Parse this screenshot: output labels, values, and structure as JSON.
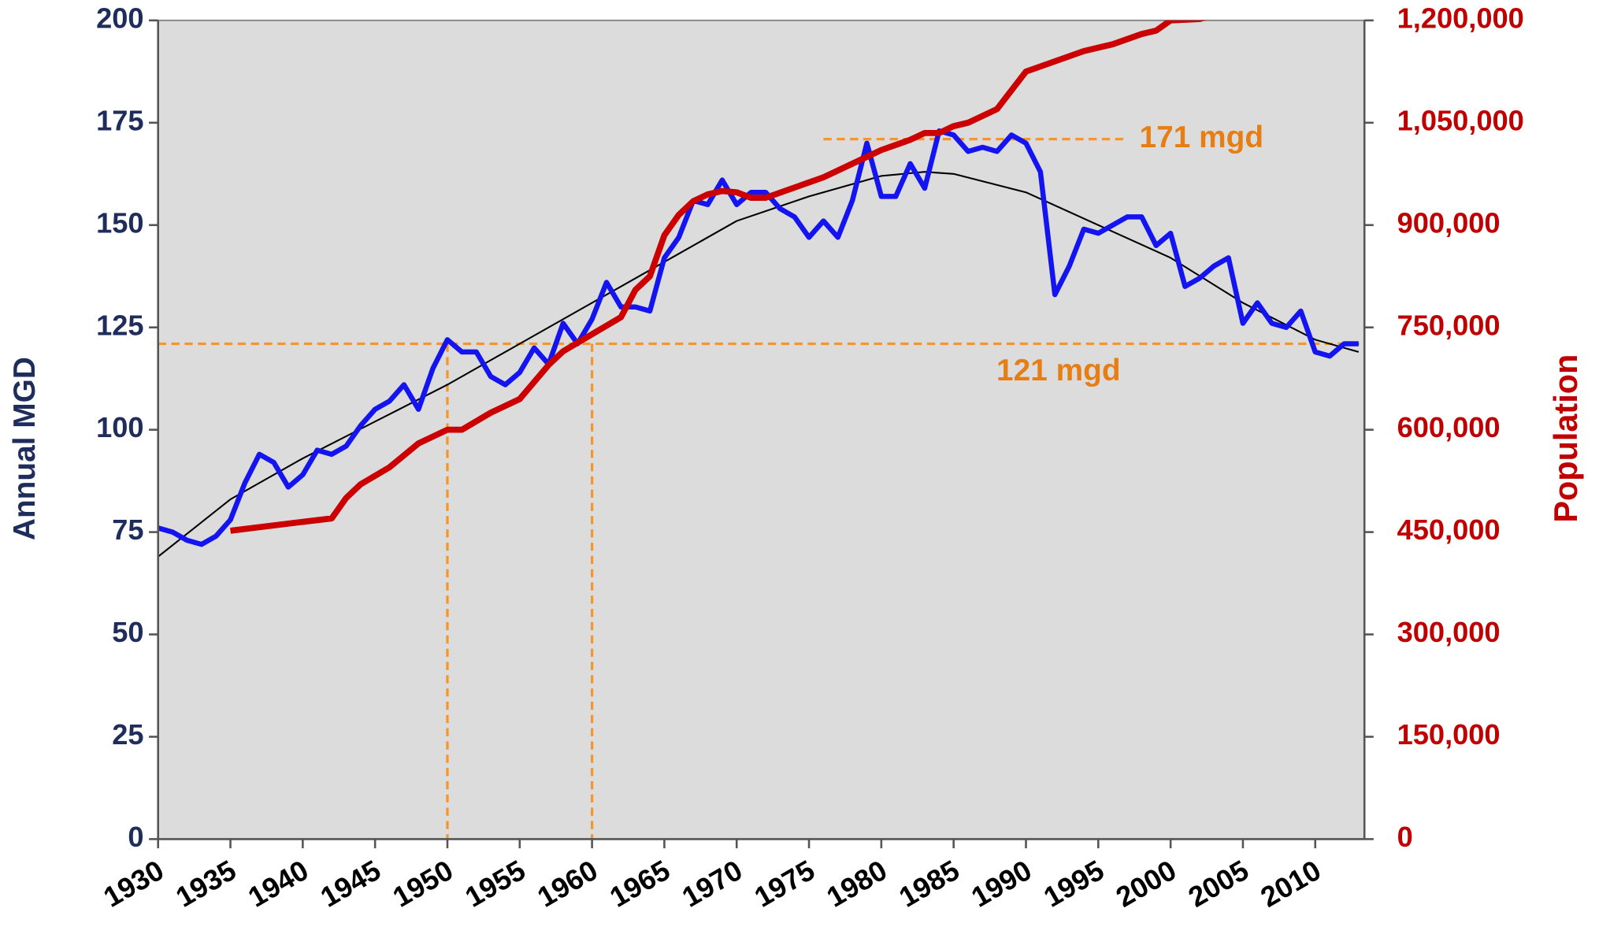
{
  "chart_data": {
    "type": "line",
    "y_label": "Annual MGD",
    "y2_label": "Population",
    "xlim": [
      1930,
      2013.4
    ],
    "xticks": [
      1930,
      1935,
      1940,
      1945,
      1950,
      1955,
      1960,
      1965,
      1970,
      1975,
      1980,
      1985,
      1990,
      1995,
      2000,
      2005,
      2010
    ],
    "ylim": [
      0,
      200
    ],
    "yticks": [
      0,
      25,
      50,
      75,
      100,
      125,
      150,
      175,
      200
    ],
    "y2lim": [
      0,
      1200000
    ],
    "y2ticks": [
      0,
      {
        "value": 150000,
        "label": "150,000"
      },
      {
        "value": 300000,
        "label": "300,000"
      },
      {
        "value": 450000,
        "label": "450,000"
      },
      {
        "value": 600000,
        "label": "600,000"
      },
      {
        "value": 750000,
        "label": "750,000"
      },
      {
        "value": 900000,
        "label": "900,000"
      },
      {
        "value": 1050000,
        "label": "1,050,000"
      },
      {
        "value": 1200000,
        "label": "1,200,000"
      }
    ],
    "series": [
      {
        "color": "#1414f0",
        "axis": "y",
        "width": 5,
        "x": [
          1930,
          1931,
          1932,
          1933,
          1934,
          1935,
          1936,
          1937,
          1938,
          1939,
          1940,
          1941,
          1942,
          1943,
          1944,
          1945,
          1946,
          1947,
          1948,
          1949,
          1950,
          1951,
          1952,
          1953,
          1954,
          1955,
          1956,
          1957,
          1958,
          1959,
          1960,
          1961,
          1962,
          1963,
          1964,
          1965,
          1966,
          1967,
          1968,
          1969,
          1970,
          1971,
          1972,
          1973,
          1974,
          1975,
          1976,
          1977,
          1978,
          1979,
          1980,
          1981,
          1982,
          1983,
          1984,
          1985,
          1986,
          1987,
          1988,
          1989,
          1990,
          1991,
          1992,
          1993,
          1994,
          1995,
          1996,
          1997,
          1998,
          1999,
          2000,
          2001,
          2002,
          2003,
          2004,
          2005,
          2006,
          2007,
          2008,
          2009,
          2010,
          2011,
          2012,
          2013
        ],
        "values": [
          76,
          75,
          73,
          72,
          74,
          78,
          87,
          94,
          92,
          86,
          89,
          95,
          94,
          96,
          101,
          105,
          107,
          111,
          105,
          115,
          122,
          119,
          119,
          113,
          111,
          114,
          120,
          116,
          126,
          121,
          127,
          136,
          130,
          130,
          129,
          142,
          147,
          156,
          155,
          161,
          155,
          158,
          158,
          154,
          152,
          147,
          151,
          147,
          156,
          170,
          157,
          157,
          165,
          159,
          173,
          172,
          168,
          169,
          168,
          172,
          170,
          163,
          133,
          140,
          149,
          148,
          150,
          152,
          152,
          145,
          148,
          135,
          137,
          140,
          142,
          126,
          131,
          126,
          125,
          129,
          119,
          118,
          121,
          121
        ]
      },
      {
        "color": "#000000",
        "axis": "y",
        "width": 1.6,
        "x": [
          1930,
          1935,
          1940,
          1945,
          1950,
          1955,
          1960,
          1965,
          1970,
          1975,
          1980,
          1983,
          1985,
          1990,
          1995,
          2000,
          2005,
          2010,
          2013
        ],
        "values": [
          69,
          83,
          93,
          102,
          111,
          121,
          131,
          141,
          151,
          157,
          162,
          163,
          162.5,
          158,
          150,
          142,
          131,
          122,
          119
        ]
      },
      {
        "color": "#cc0000",
        "axis": "y2",
        "width": 6,
        "x": [
          1935,
          1940,
          1942,
          1943,
          1944,
          1946,
          1948,
          1950,
          1951,
          1953,
          1955,
          1956,
          1957,
          1958,
          1960,
          1962,
          1963,
          1964,
          1965,
          1966,
          1967,
          1968,
          1969,
          1970,
          1971,
          1972,
          1974,
          1976,
          1978,
          1980,
          1982,
          1983,
          1984,
          1985,
          1986,
          1988,
          1990,
          1992,
          1994,
          1996,
          1998,
          1999,
          2000,
          2002,
          2003,
          2005
        ],
        "values": [
          452000,
          465000,
          470000,
          500000,
          520000,
          545000,
          580000,
          600000,
          600000,
          625000,
          645000,
          670000,
          695000,
          715000,
          740000,
          765000,
          805000,
          825000,
          885000,
          915000,
          935000,
          945000,
          950000,
          948000,
          940000,
          940000,
          955000,
          970000,
          990000,
          1010000,
          1025000,
          1035000,
          1035000,
          1045000,
          1050000,
          1070000,
          1125000,
          1140000,
          1155000,
          1165000,
          1180000,
          1185000,
          1200000,
          1202000,
          1208000,
          1240000
        ]
      }
    ],
    "annotations": [
      {
        "text": "171 mgd",
        "value": 171,
        "x_from": 1976,
        "x_to": 1997
      },
      {
        "text": "121 mgd",
        "value": 121,
        "x_from": 1930,
        "x_to": 2013.4,
        "drop_lines": [
          1950,
          1960
        ]
      }
    ],
    "annotation_color": "#f5962a"
  }
}
